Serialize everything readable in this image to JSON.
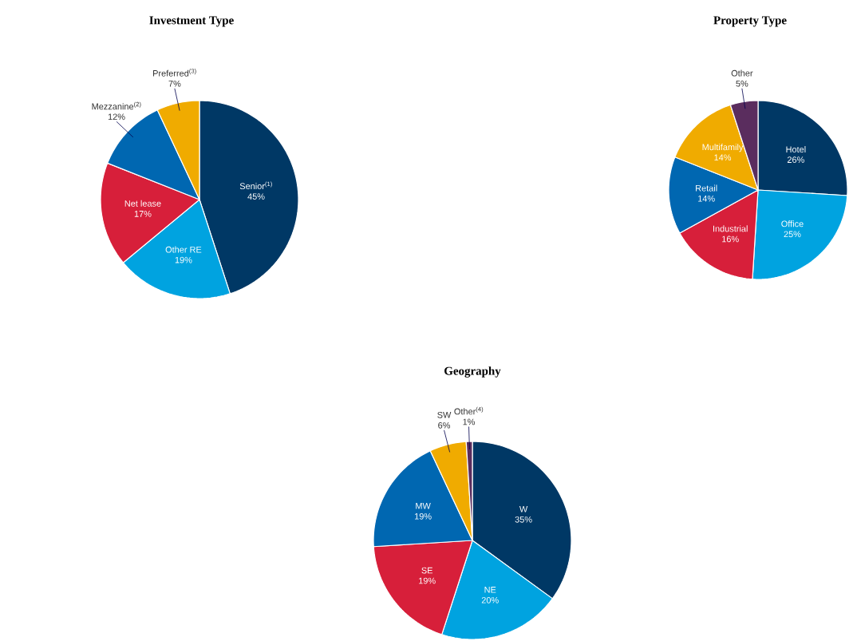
{
  "chart_data": [
    {
      "type": "pie",
      "title": "Investment Type",
      "categories": [
        "Senior$^{(1)}$",
        "Other RE",
        "Net lease",
        "Mezzanine$^{(2)}$",
        "Preferred$^{(3)}$"
      ],
      "values": [
        45,
        19,
        17,
        12,
        7
      ],
      "value_labels": [
        "45%",
        "19%",
        "17%",
        "12%",
        "7%"
      ],
      "colors": [
        "#003865",
        "#00a3e0",
        "#d71f3a",
        "#0067b1",
        "#f0ab00"
      ]
    },
    {
      "type": "pie",
      "title": "Property Type",
      "categories": [
        "Hotel",
        "Office",
        "Industrial",
        "Retail",
        "Multifamily",
        "Other"
      ],
      "values": [
        26,
        25,
        16,
        14,
        14,
        5
      ],
      "value_labels": [
        "26%",
        "25%",
        "16%",
        "14%",
        "14%",
        "5%"
      ],
      "colors": [
        "#003865",
        "#00a3e0",
        "#d71f3a",
        "#0067b1",
        "#f0ab00",
        "#5a2d5e"
      ]
    },
    {
      "type": "pie",
      "title": "Geography",
      "categories": [
        "W",
        "NE",
        "SE",
        "MW",
        "SW",
        "Other$^{(4)}$"
      ],
      "values": [
        35,
        20,
        19,
        19,
        6,
        1
      ],
      "value_labels": [
        "35%",
        "20%",
        "19%",
        "19%",
        "6%",
        "1%"
      ],
      "colors": [
        "#003865",
        "#00a3e0",
        "#d71f3a",
        "#0067b1",
        "#f0ab00",
        "#5a2d5e"
      ]
    }
  ]
}
